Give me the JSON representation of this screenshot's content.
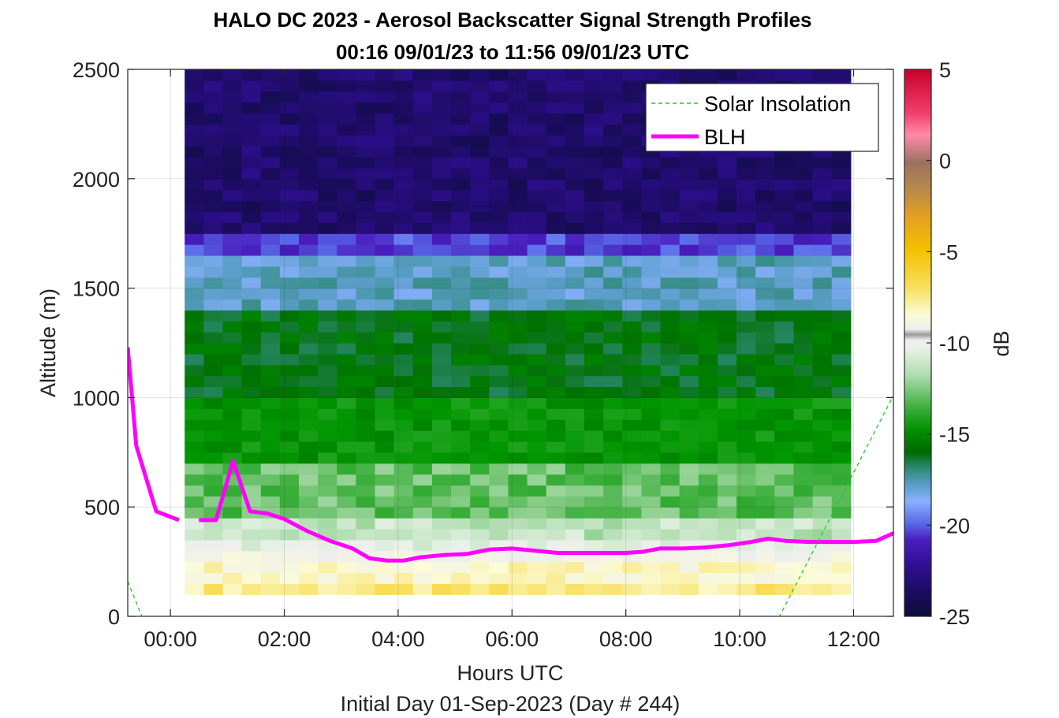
{
  "chart_data": {
    "type": "heatmap",
    "title": "HALO DC 2023 - Aerosol Backscatter Signal Strength Profiles",
    "subtitle": "00:16 09/01/23 to 11:56 09/01/23  UTC",
    "xlabel": "Hours UTC",
    "footer": "Initial Day 01-Sep-2023 (Day # 244)",
    "ylabel": "Altitude (m)",
    "xlim": [
      -0.75,
      12.7
    ],
    "ylim": [
      0,
      2500
    ],
    "x_ticks": [
      0,
      2,
      4,
      6,
      8,
      10,
      12
    ],
    "x_tick_labels": [
      "00:00",
      "02:00",
      "04:00",
      "06:00",
      "08:00",
      "10:00",
      "12:00"
    ],
    "y_ticks": [
      0,
      500,
      1000,
      1500,
      2000,
      2500
    ],
    "y_tick_labels": [
      "0",
      "500",
      "1000",
      "1500",
      "2000",
      "2500"
    ],
    "grid": true,
    "legend": {
      "placement": "top-right",
      "entries": [
        {
          "name": "Solar Insolation",
          "color": "#22cc22",
          "style": "dashed"
        },
        {
          "name": "BLH",
          "color": "#ff00ff",
          "style": "solid"
        }
      ]
    },
    "colorbar": {
      "label": "dB",
      "range": [
        -25,
        5
      ],
      "ticks": [
        5,
        0,
        -5,
        -10,
        -15,
        -20,
        -25
      ],
      "tick_labels": [
        "5",
        "0",
        "-5",
        "-10",
        "-15",
        "-20",
        "-25"
      ]
    },
    "heatmap_x_range": [
      0.25,
      11.95
    ],
    "heatmap_y_range": [
      100,
      2500
    ],
    "heatmap_layers_dB": [
      {
        "alt_from": 100,
        "alt_to": 150,
        "value": -7.5
      },
      {
        "alt_from": 150,
        "alt_to": 250,
        "value": -8.5
      },
      {
        "alt_from": 250,
        "alt_to": 300,
        "value": -9.5
      },
      {
        "alt_from": 300,
        "alt_to": 350,
        "value": -10.5
      },
      {
        "alt_from": 350,
        "alt_to": 450,
        "value": -11.5
      },
      {
        "alt_from": 450,
        "alt_to": 700,
        "value": -13.0
      },
      {
        "alt_from": 700,
        "alt_to": 1000,
        "value": -15.0
      },
      {
        "alt_from": 1000,
        "alt_to": 1400,
        "value": -16.5
      },
      {
        "alt_from": 1400,
        "alt_to": 1650,
        "value": -18.5
      },
      {
        "alt_from": 1650,
        "alt_to": 1750,
        "value": -21.0
      },
      {
        "alt_from": 1750,
        "alt_to": 2500,
        "value": -23.5
      }
    ],
    "series": [
      {
        "name": "BLH",
        "x": [
          -0.75,
          -0.6,
          -0.25,
          0.15
        ],
        "y": [
          1230,
          780,
          480,
          440
        ]
      },
      {
        "name": "BLH",
        "x": [
          0.5,
          0.8,
          1.1,
          1.4,
          1.7,
          2.0,
          2.4,
          2.8,
          3.2,
          3.5,
          3.8,
          4.1,
          4.4,
          4.8,
          5.2,
          5.6,
          6.0,
          6.4,
          6.8,
          7.2,
          7.6,
          8.0,
          8.3,
          8.6,
          9.0,
          9.4,
          9.8,
          10.2,
          10.5,
          10.8,
          11.2,
          11.6,
          12.0,
          12.4,
          12.7
        ],
        "y": [
          440,
          440,
          710,
          480,
          470,
          445,
          390,
          345,
          310,
          265,
          255,
          255,
          270,
          280,
          285,
          305,
          310,
          300,
          290,
          290,
          290,
          290,
          295,
          310,
          310,
          315,
          325,
          340,
          355,
          345,
          340,
          340,
          340,
          345,
          380
        ]
      },
      {
        "name": "Solar Insolation",
        "x": [
          -0.75,
          -0.5,
          10.7,
          12.7
        ],
        "y": [
          160,
          0,
          0,
          1010
        ]
      }
    ]
  }
}
